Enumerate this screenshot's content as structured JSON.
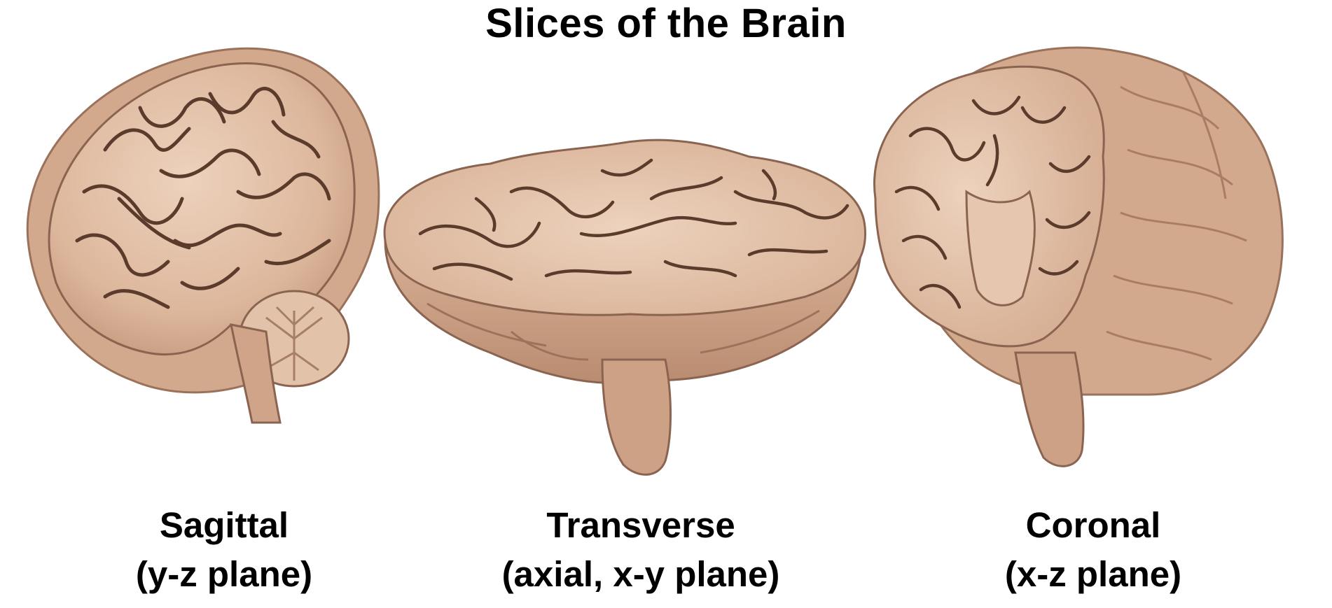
{
  "title": "Slices of the Brain",
  "colors": {
    "tissue_light": "#e9c9b1",
    "tissue_mid": "#d8ae92",
    "tissue_dark": "#b88a6e",
    "sulcus_line": "#5a3b2c",
    "outline": "#8a6450"
  },
  "panels": [
    {
      "id": "sagittal",
      "name": "Sagittal",
      "plane": "(y-z plane)",
      "icon": "sagittal-brain-slice-icon"
    },
    {
      "id": "transverse",
      "name": "Transverse",
      "plane": "(axial, x-y plane)",
      "icon": "transverse-brain-slice-icon"
    },
    {
      "id": "coronal",
      "name": "Coronal",
      "plane": "(x-z plane)",
      "icon": "coronal-brain-slice-icon"
    }
  ]
}
